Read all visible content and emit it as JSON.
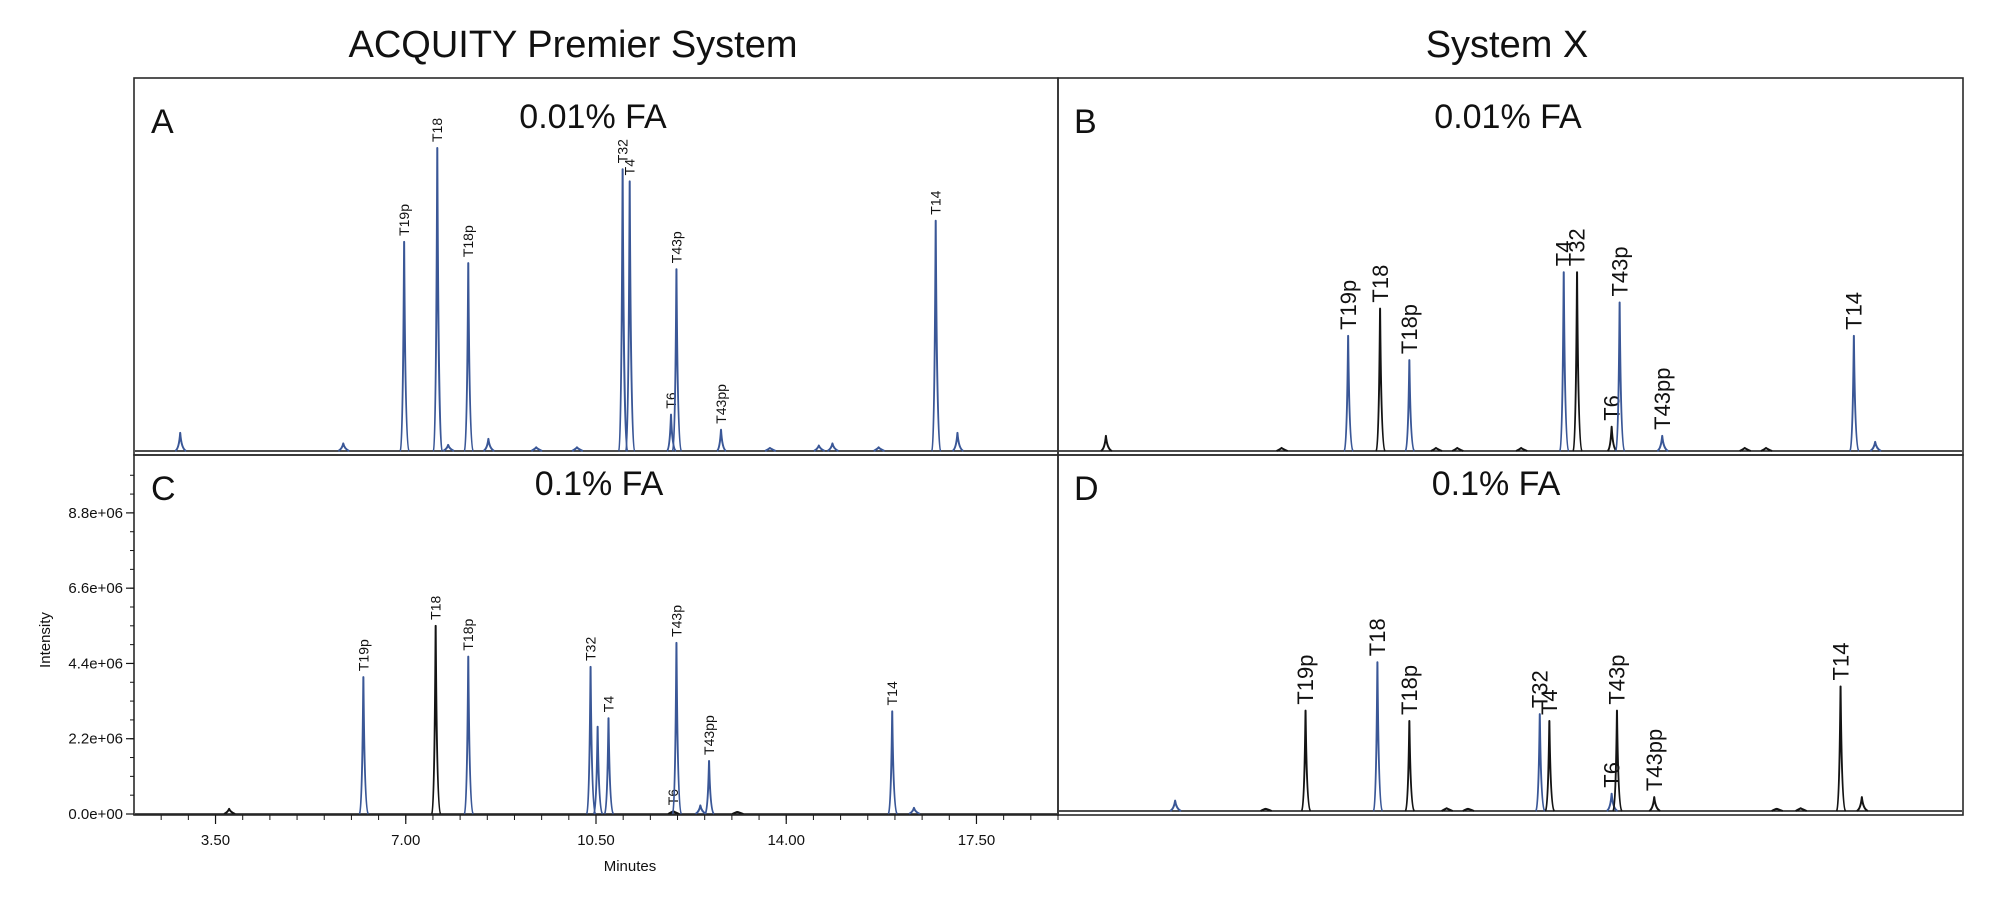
{
  "figure": {
    "column_titles": [
      "ACQUITY Premier System",
      "System X"
    ],
    "colors": {
      "blue": "#3a5797",
      "black": "#141414",
      "frame": "#2a2a2a"
    }
  },
  "chart_data": [
    {
      "panel": "A",
      "condition": "0.01% FA",
      "type": "line",
      "x_range": [
        2.0,
        19.0
      ],
      "peaks": [
        {
          "label": "",
          "x": 2.85,
          "h": 0.06,
          "color": "blue"
        },
        {
          "label": "",
          "x": 5.85,
          "h": 0.025,
          "color": "blue"
        },
        {
          "label": "T19p",
          "x": 6.97,
          "h": 0.69,
          "color": "blue"
        },
        {
          "label": "T18",
          "x": 7.58,
          "h": 1.0,
          "color": "blue"
        },
        {
          "label": "",
          "x": 7.78,
          "h": 0.02,
          "color": "blue"
        },
        {
          "label": "T18p",
          "x": 8.15,
          "h": 0.62,
          "color": "blue"
        },
        {
          "label": "",
          "x": 8.52,
          "h": 0.04,
          "color": "blue"
        },
        {
          "label": "",
          "x": 9.4,
          "h": 0.012,
          "color": "blue"
        },
        {
          "label": "",
          "x": 10.15,
          "h": 0.012,
          "color": "blue"
        },
        {
          "label": "T32",
          "x": 10.99,
          "h": 0.93,
          "color": "blue"
        },
        {
          "label": "T4",
          "x": 11.12,
          "h": 0.89,
          "color": "blue"
        },
        {
          "label": "T6",
          "x": 11.88,
          "h": 0.12,
          "color": "blue"
        },
        {
          "label": "T43p",
          "x": 11.98,
          "h": 0.6,
          "color": "blue"
        },
        {
          "label": "T43pp",
          "x": 12.8,
          "h": 0.07,
          "color": "blue"
        },
        {
          "label": "",
          "x": 13.7,
          "h": 0.01,
          "color": "blue"
        },
        {
          "label": "",
          "x": 14.6,
          "h": 0.018,
          "color": "blue"
        },
        {
          "label": "",
          "x": 14.85,
          "h": 0.025,
          "color": "blue"
        },
        {
          "label": "",
          "x": 15.7,
          "h": 0.012,
          "color": "blue"
        },
        {
          "label": "T14",
          "x": 16.75,
          "h": 0.76,
          "color": "blue"
        },
        {
          "label": "",
          "x": 17.15,
          "h": 0.06,
          "color": "blue"
        }
      ]
    },
    {
      "panel": "B",
      "condition": "0.01% FA",
      "type": "line",
      "x_range": [
        2.0,
        19.0
      ],
      "peaks": [
        {
          "label": "",
          "x": 2.9,
          "h": 0.05,
          "color": "black"
        },
        {
          "label": "",
          "x": 6.2,
          "h": 0.01,
          "color": "black"
        },
        {
          "label": "T19p",
          "x": 7.45,
          "h": 0.38,
          "color": "blue"
        },
        {
          "label": "T18",
          "x": 8.05,
          "h": 0.47,
          "color": "black"
        },
        {
          "label": "T18p",
          "x": 8.6,
          "h": 0.3,
          "color": "blue"
        },
        {
          "label": "",
          "x": 9.1,
          "h": 0.01,
          "color": "black"
        },
        {
          "label": "",
          "x": 9.5,
          "h": 0.01,
          "color": "black"
        },
        {
          "label": "",
          "x": 10.7,
          "h": 0.01,
          "color": "black"
        },
        {
          "label": "T4",
          "x": 11.5,
          "h": 0.59,
          "color": "blue"
        },
        {
          "label": "T32",
          "x": 11.75,
          "h": 0.59,
          "color": "black"
        },
        {
          "label": "T6",
          "x": 12.4,
          "h": 0.08,
          "color": "black"
        },
        {
          "label": "T43p",
          "x": 12.55,
          "h": 0.49,
          "color": "blue"
        },
        {
          "label": "T43pp",
          "x": 13.35,
          "h": 0.05,
          "color": "blue"
        },
        {
          "label": "",
          "x": 14.9,
          "h": 0.01,
          "color": "black"
        },
        {
          "label": "",
          "x": 15.3,
          "h": 0.01,
          "color": "black"
        },
        {
          "label": "T14",
          "x": 16.95,
          "h": 0.38,
          "color": "blue"
        },
        {
          "label": "",
          "x": 17.35,
          "h": 0.03,
          "color": "blue"
        }
      ]
    },
    {
      "panel": "C",
      "condition": "0.1% FA",
      "type": "line",
      "x_range": [
        2.0,
        19.0
      ],
      "xlabel": "Minutes",
      "ylabel": "Intensity",
      "xticks": [
        {
          "v": 3.5,
          "label": "3.50"
        },
        {
          "v": 7.0,
          "label": "7.00"
        },
        {
          "v": 10.5,
          "label": "10.50"
        },
        {
          "v": 14.0,
          "label": "14.00"
        },
        {
          "v": 17.5,
          "label": "17.50"
        }
      ],
      "yticks": [
        {
          "v": 0.0,
          "label": "0.0e+00"
        },
        {
          "v": 2200000,
          "label": "2.2e+06"
        },
        {
          "v": 4400000,
          "label": "4.4e+06"
        },
        {
          "v": 6600000,
          "label": "6.6e+06"
        },
        {
          "v": 8800000,
          "label": "8.8e+06"
        }
      ],
      "y_range": [
        0,
        10200000
      ],
      "peaks": [
        {
          "label": "",
          "x": 3.75,
          "y": 150000,
          "color": "black"
        },
        {
          "label": "T19p",
          "x": 6.22,
          "y": 4000000,
          "color": "blue"
        },
        {
          "label": "T18",
          "x": 7.55,
          "y": 5500000,
          "color": "black"
        },
        {
          "label": "T18p",
          "x": 8.15,
          "y": 4600000,
          "color": "blue"
        },
        {
          "label": "T32",
          "x": 10.4,
          "y": 4300000,
          "color": "blue"
        },
        {
          "label": "",
          "x": 10.53,
          "y": 2550000,
          "color": "blue"
        },
        {
          "label": "T4",
          "x": 10.73,
          "y": 2800000,
          "color": "blue"
        },
        {
          "label": "T6",
          "x": 11.92,
          "y": 80000,
          "color": "black"
        },
        {
          "label": "T43p",
          "x": 11.98,
          "y": 5000000,
          "color": "blue"
        },
        {
          "label": "",
          "x": 12.42,
          "y": 250000,
          "color": "blue"
        },
        {
          "label": "T43pp",
          "x": 12.58,
          "y": 1550000,
          "color": "blue"
        },
        {
          "label": "",
          "x": 13.1,
          "y": 60000,
          "color": "black"
        },
        {
          "label": "T14",
          "x": 15.95,
          "y": 3000000,
          "color": "blue"
        },
        {
          "label": "",
          "x": 16.35,
          "y": 180000,
          "color": "blue"
        }
      ]
    },
    {
      "panel": "D",
      "condition": "0.1% FA",
      "type": "line",
      "x_range": [
        2.0,
        19.0
      ],
      "peaks": [
        {
          "label": "",
          "x": 4.2,
          "h": 0.03,
          "color": "blue"
        },
        {
          "label": "",
          "x": 5.9,
          "h": 0.006,
          "color": "black"
        },
        {
          "label": "T19p",
          "x": 6.65,
          "h": 0.29,
          "color": "black"
        },
        {
          "label": "T18",
          "x": 8.0,
          "h": 0.43,
          "color": "blue"
        },
        {
          "label": "T18p",
          "x": 8.6,
          "h": 0.26,
          "color": "black"
        },
        {
          "label": "",
          "x": 9.3,
          "h": 0.008,
          "color": "black"
        },
        {
          "label": "",
          "x": 9.7,
          "h": 0.006,
          "color": "black"
        },
        {
          "label": "T32",
          "x": 11.05,
          "h": 0.28,
          "color": "blue"
        },
        {
          "label": "T4",
          "x": 11.23,
          "h": 0.26,
          "color": "black"
        },
        {
          "label": "T6",
          "x": 12.4,
          "h": 0.05,
          "color": "blue"
        },
        {
          "label": "T43p",
          "x": 12.5,
          "h": 0.29,
          "color": "black"
        },
        {
          "label": "T43pp",
          "x": 13.2,
          "h": 0.04,
          "color": "black"
        },
        {
          "label": "",
          "x": 15.5,
          "h": 0.006,
          "color": "black"
        },
        {
          "label": "",
          "x": 15.95,
          "h": 0.008,
          "color": "black"
        },
        {
          "label": "T14",
          "x": 16.7,
          "h": 0.36,
          "color": "black"
        },
        {
          "label": "",
          "x": 17.1,
          "h": 0.04,
          "color": "black"
        }
      ]
    }
  ]
}
